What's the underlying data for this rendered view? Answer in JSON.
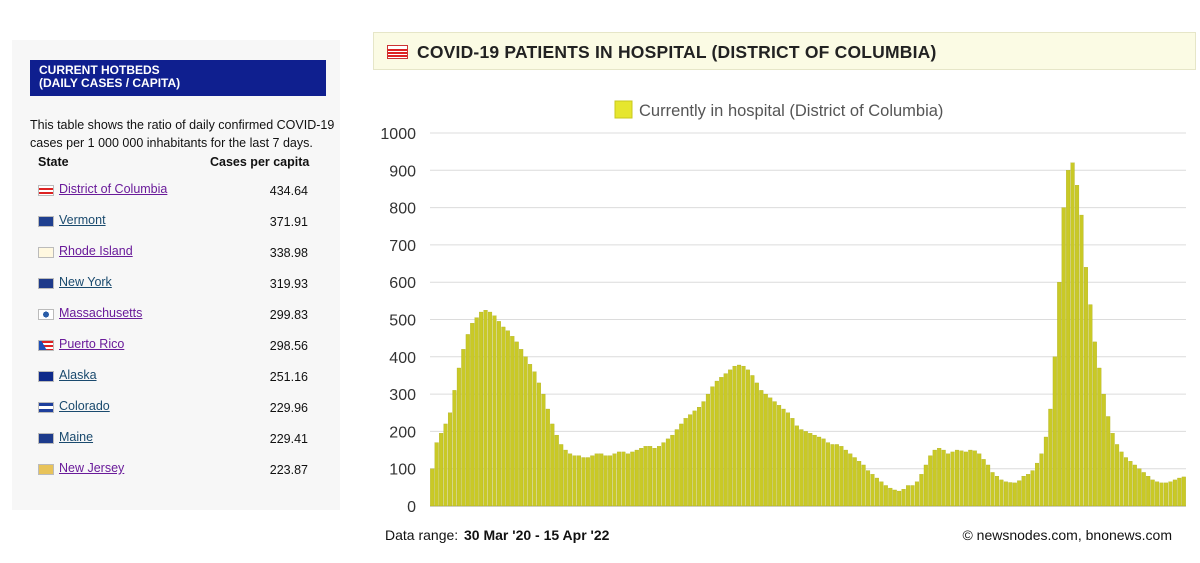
{
  "sidebar": {
    "title_line1": "CURRENT HOTBEDS",
    "title_line2": "(DAILY CASES / CAPITA)",
    "description": "This table shows the ratio of daily confirmed COVID-19 cases per 1 000 000 inhabitants for the last 7 days.",
    "col_state": "State",
    "col_cases": "Cases per capita",
    "rows": [
      {
        "state": "District of Columbia",
        "value": "434.64",
        "flag": "dc-flag",
        "visited": true
      },
      {
        "state": "Vermont",
        "value": "371.91",
        "flag": "vermont-flag",
        "visited": false
      },
      {
        "state": "Rhode Island",
        "value": "338.98",
        "flag": "rhode-island-flag",
        "visited": true
      },
      {
        "state": "New York",
        "value": "319.93",
        "flag": "new-york-flag",
        "visited": false
      },
      {
        "state": "Massachusetts",
        "value": "299.83",
        "flag": "massachusetts-flag",
        "visited": true
      },
      {
        "state": "Puerto Rico",
        "value": "298.56",
        "flag": "puerto-rico-flag",
        "visited": true
      },
      {
        "state": "Alaska",
        "value": "251.16",
        "flag": "alaska-flag",
        "visited": false
      },
      {
        "state": "Colorado",
        "value": "229.96",
        "flag": "colorado-flag",
        "visited": false
      },
      {
        "state": "Maine",
        "value": "229.41",
        "flag": "maine-flag",
        "visited": false
      },
      {
        "state": "New Jersey",
        "value": "223.87",
        "flag": "new-jersey-flag",
        "visited": true
      }
    ]
  },
  "chart_panel": {
    "title": "COVID-19 PATIENTS IN HOSPITAL (DISTRICT OF COLUMBIA)",
    "data_range_label": "Data range:",
    "data_range_value": "30 Mar '20  -  15 Apr '22",
    "credit": "© newsnodes.com, bnonews.com"
  },
  "colors": {
    "header_bg": "#0f1f8f",
    "bar_fill": "#c9c926",
    "legend_swatch": "#e6e62e",
    "title_bar_bg": "#fbfbe4"
  },
  "chart_data": {
    "type": "bar",
    "title": "COVID-19 PATIENTS IN HOSPITAL (DISTRICT OF COLUMBIA)",
    "xlabel": "",
    "ylabel": "",
    "ylim": [
      0,
      1000
    ],
    "yticks": [
      0,
      100,
      200,
      300,
      400,
      500,
      600,
      700,
      800,
      900,
      1000
    ],
    "grid": true,
    "legend_position": "top-center",
    "x_start": "2020-03-30",
    "x_end": "2022-04-15",
    "step_days": 3,
    "series": [
      {
        "name": "Currently in hospital (District of Columbia)",
        "values": [
          100,
          170,
          195,
          220,
          250,
          310,
          370,
          420,
          460,
          490,
          505,
          520,
          525,
          520,
          510,
          495,
          480,
          470,
          455,
          440,
          420,
          400,
          380,
          360,
          330,
          300,
          260,
          220,
          190,
          165,
          150,
          140,
          135,
          135,
          130,
          130,
          135,
          140,
          140,
          135,
          135,
          140,
          145,
          145,
          140,
          145,
          150,
          155,
          160,
          160,
          155,
          160,
          170,
          180,
          190,
          205,
          220,
          235,
          245,
          255,
          265,
          280,
          300,
          320,
          335,
          345,
          355,
          365,
          375,
          378,
          375,
          365,
          350,
          330,
          310,
          300,
          290,
          280,
          270,
          260,
          250,
          235,
          215,
          205,
          200,
          195,
          190,
          185,
          180,
          170,
          165,
          165,
          160,
          150,
          140,
          130,
          120,
          110,
          95,
          85,
          75,
          65,
          55,
          48,
          43,
          40,
          45,
          55,
          55,
          65,
          85,
          110,
          135,
          150,
          155,
          150,
          140,
          145,
          150,
          148,
          145,
          150,
          148,
          140,
          125,
          110,
          90,
          80,
          70,
          65,
          63,
          62,
          68,
          80,
          85,
          95,
          115,
          140,
          185,
          260,
          400,
          600,
          800,
          900,
          920,
          860,
          780,
          640,
          540,
          440,
          370,
          300,
          240,
          195,
          165,
          145,
          130,
          120,
          110,
          100,
          90,
          80,
          70,
          65,
          62,
          62,
          65,
          70,
          75,
          78
        ]
      }
    ]
  }
}
